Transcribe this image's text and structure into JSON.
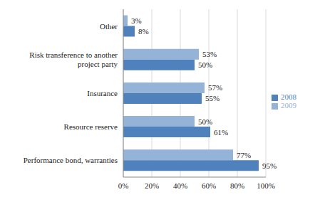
{
  "chart_data": {
    "type": "bar",
    "orientation": "horizontal",
    "categories": [
      "Other",
      "Risk transference to another project party",
      "Insurance",
      "Resource reserve",
      "Performance bond, warranties"
    ],
    "series": [
      {
        "name": "2009",
        "color": "#95b3d7",
        "values": [
          3,
          53,
          57,
          50,
          77
        ],
        "value_labels": [
          "3%",
          "53%",
          "57%",
          "50%",
          "77%"
        ]
      },
      {
        "name": "2008",
        "color": "#4f81bd",
        "values": [
          8,
          50,
          55,
          61,
          95
        ],
        "value_labels": [
          "8%",
          "50%",
          "55%",
          "61%",
          "95%"
        ]
      }
    ],
    "xlim": [
      0,
      100
    ],
    "xticks": [
      {
        "value": 0,
        "label": "0%"
      },
      {
        "value": 20,
        "label": "20%"
      },
      {
        "value": 40,
        "label": "40%"
      },
      {
        "value": 60,
        "label": "60%"
      },
      {
        "value": 80,
        "label": "80%"
      },
      {
        "value": 100,
        "label": "100%"
      }
    ],
    "grid": true,
    "legend": "right",
    "data_labels": true
  }
}
